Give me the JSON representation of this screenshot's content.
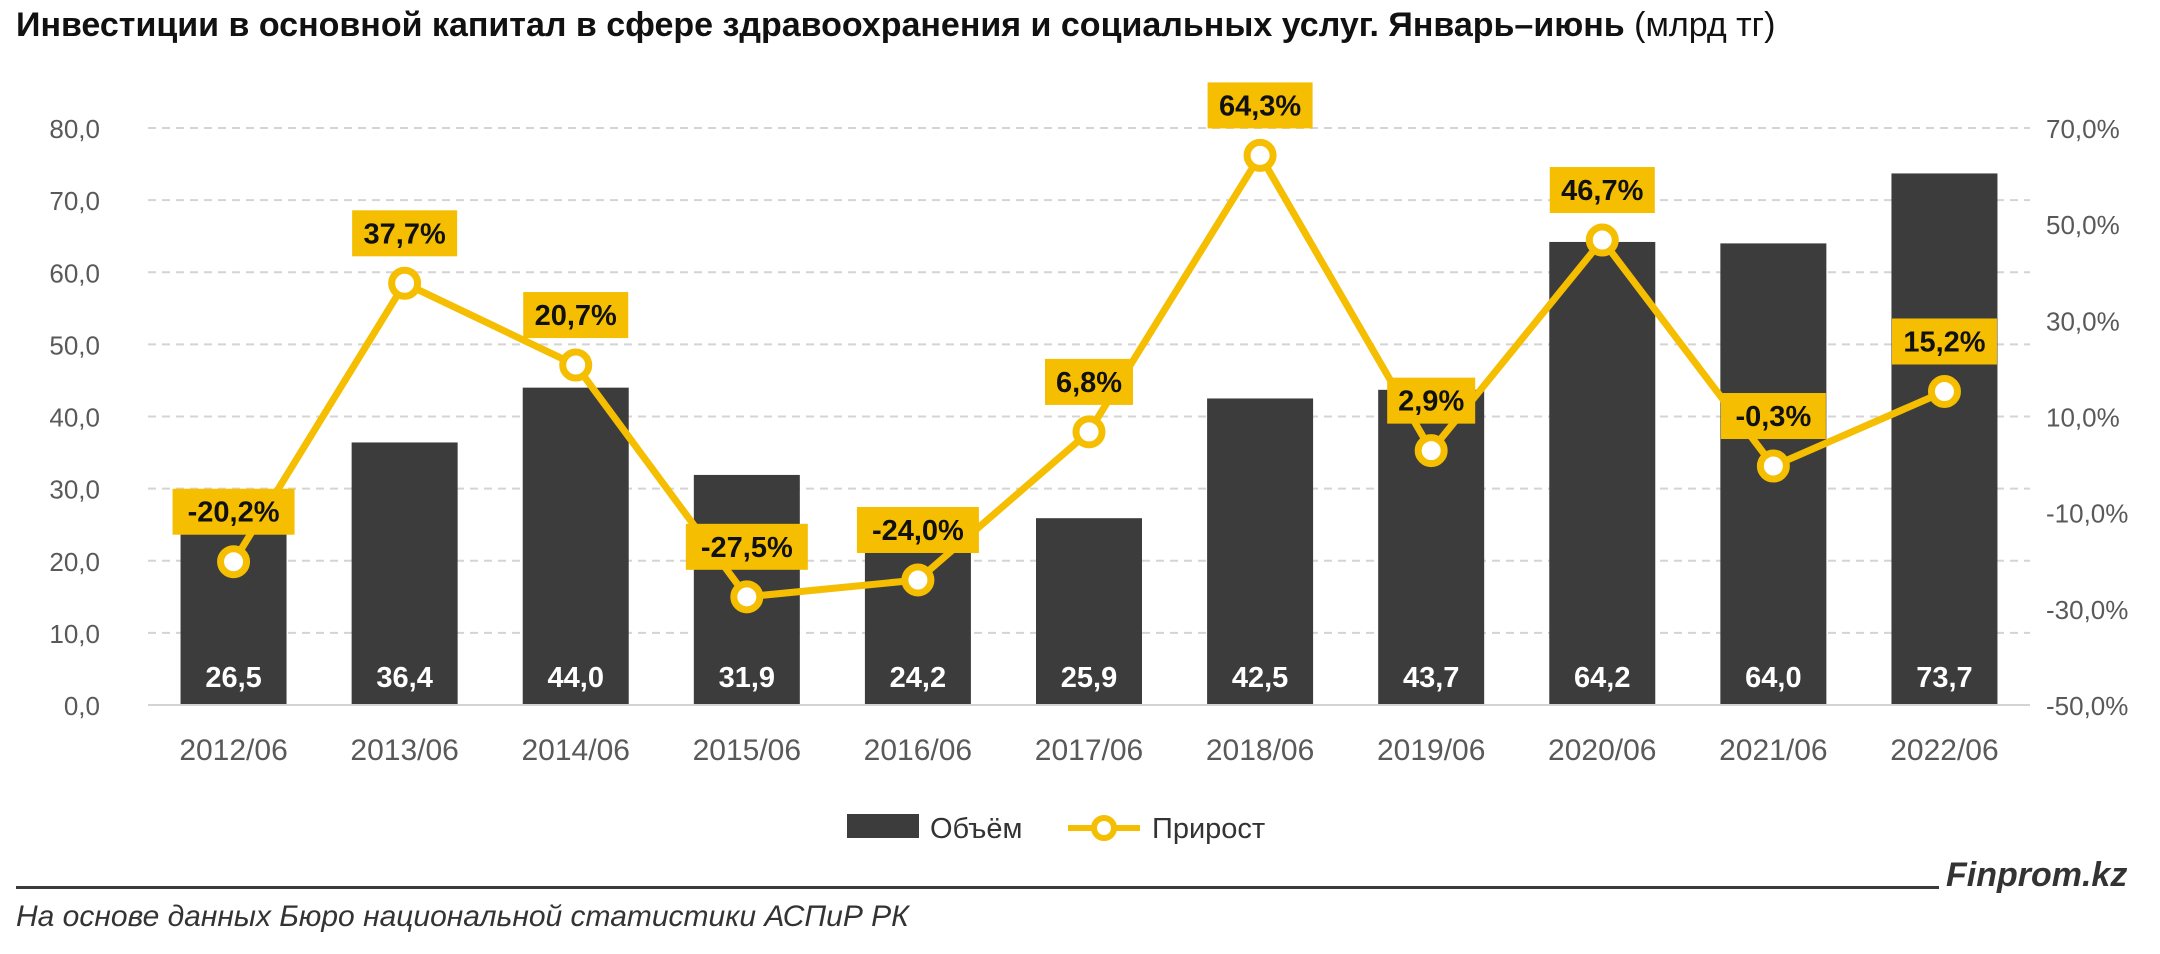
{
  "title": {
    "main": "Инвестиции в основной капитал в сфере здравоохранения и социальных услуг. Январь–июнь",
    "unit": "(млрд тг)"
  },
  "footer": {
    "brand": "Finprom.kz",
    "source": "На основе данных Бюро национальной статистики АСПиР РК"
  },
  "colors": {
    "bar": "#3c3c3c",
    "line": "#f5be00",
    "label_box": "#f5be00",
    "grid": "#d4d4d4",
    "axis_text": "#595959"
  },
  "chart_data": {
    "type": "bar",
    "categories": [
      "2012/06",
      "2013/06",
      "2014/06",
      "2015/06",
      "2016/06",
      "2017/06",
      "2018/06",
      "2019/06",
      "2020/06",
      "2021/06",
      "2022/06"
    ],
    "series": [
      {
        "name": "Объём",
        "type": "bar",
        "axis": "left",
        "values": [
          26.5,
          36.4,
          44.0,
          31.9,
          24.2,
          25.9,
          42.5,
          43.7,
          64.2,
          64.0,
          73.7
        ],
        "labels": [
          "26,5",
          "36,4",
          "44,0",
          "31,9",
          "24,2",
          "25,9",
          "42,5",
          "43,7",
          "64,2",
          "64,0",
          "73,7"
        ]
      },
      {
        "name": "Прирост",
        "type": "line",
        "axis": "right",
        "values": [
          -20.2,
          37.7,
          20.7,
          -27.5,
          -24.0,
          6.8,
          64.3,
          2.9,
          46.7,
          -0.3,
          15.2
        ],
        "labels": [
          "-20,2%",
          "37,7%",
          "20,7%",
          "-27,5%",
          "-24,0%",
          "6,8%",
          "64,3%",
          "2,9%",
          "46,7%",
          "-0,3%",
          "15,2%"
        ]
      }
    ],
    "y_left": {
      "range": [
        0,
        80
      ],
      "ticks": [
        "0,0",
        "10,0",
        "20,0",
        "30,0",
        "40,0",
        "50,0",
        "60,0",
        "70,0",
        "80,0"
      ]
    },
    "y_right": {
      "range": [
        -50,
        70
      ],
      "ticks": [
        "-50,0%",
        "-30,0%",
        "-10,0%",
        "10,0%",
        "30,0%",
        "50,0%",
        "70,0%"
      ]
    },
    "grid": true,
    "legend_position": "bottom"
  }
}
